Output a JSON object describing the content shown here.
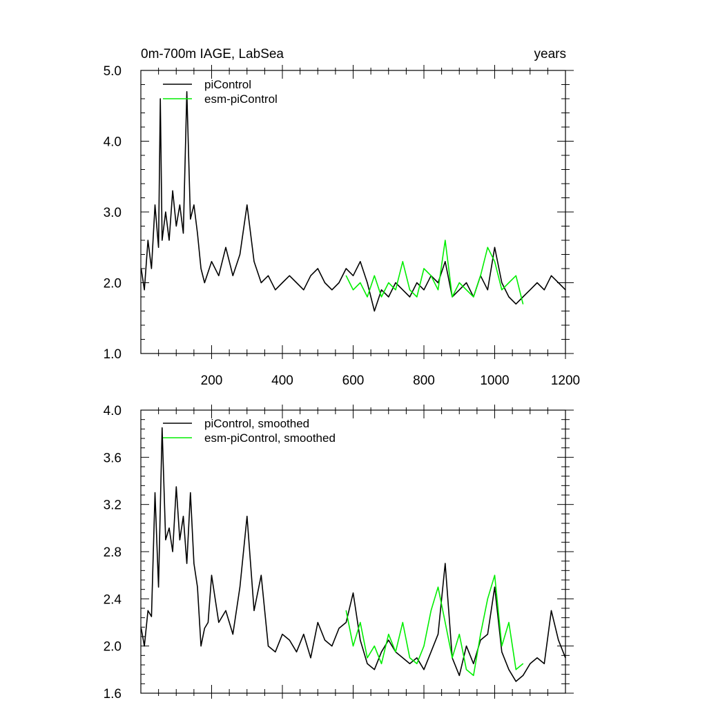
{
  "chart_data": [
    {
      "type": "line",
      "title": "0m-700m IAGE, LabSea",
      "title_right": "years",
      "xlabel": "",
      "ylabel": "",
      "xlim": [
        0,
        1200
      ],
      "ylim": [
        1.0,
        5.0
      ],
      "xticks": [
        200,
        400,
        600,
        800,
        1000,
        1200
      ],
      "yticks": [
        1.0,
        2.0,
        3.0,
        4.0,
        5.0
      ],
      "ytick_labels": [
        "1.0",
        "2.0",
        "3.0",
        "4.0",
        "5.0"
      ],
      "legend_position": "top-left",
      "series": [
        {
          "name": "piControl",
          "color": "#000000",
          "x": [
            1,
            10,
            20,
            30,
            40,
            50,
            55,
            60,
            70,
            80,
            90,
            100,
            110,
            120,
            130,
            140,
            150,
            160,
            170,
            180,
            200,
            220,
            240,
            260,
            280,
            300,
            320,
            340,
            360,
            380,
            400,
            420,
            440,
            460,
            480,
            500,
            520,
            540,
            560,
            580,
            600,
            620,
            640,
            660,
            680,
            700,
            720,
            740,
            760,
            780,
            800,
            820,
            840,
            860,
            880,
            900,
            920,
            940,
            960,
            980,
            1000,
            1020,
            1040,
            1060,
            1080,
            1100,
            1120,
            1140,
            1160,
            1180,
            1200
          ],
          "y": [
            2.2,
            1.9,
            2.6,
            2.2,
            3.1,
            2.5,
            4.6,
            2.6,
            3.0,
            2.6,
            3.3,
            2.8,
            3.1,
            2.7,
            4.7,
            2.9,
            3.1,
            2.7,
            2.2,
            2.0,
            2.3,
            2.1,
            2.5,
            2.1,
            2.4,
            3.1,
            2.3,
            2.0,
            2.1,
            1.9,
            2.0,
            2.1,
            2.0,
            1.9,
            2.1,
            2.2,
            2.0,
            1.9,
            2.0,
            2.2,
            2.1,
            2.3,
            2.0,
            1.6,
            1.9,
            1.8,
            2.0,
            1.9,
            1.8,
            2.0,
            1.9,
            2.1,
            2.0,
            2.3,
            1.8,
            1.9,
            2.0,
            1.8,
            2.1,
            1.9,
            2.5,
            2.0,
            1.8,
            1.7,
            1.8,
            1.9,
            2.0,
            1.9,
            2.1,
            2.0,
            1.9
          ]
        },
        {
          "name": "esm-piControl",
          "color": "#00ee00",
          "x": [
            580,
            600,
            620,
            640,
            660,
            680,
            700,
            720,
            740,
            760,
            780,
            800,
            820,
            840,
            860,
            880,
            900,
            920,
            940,
            960,
            980,
            1000,
            1020,
            1040,
            1060,
            1080
          ],
          "y": [
            2.1,
            1.9,
            2.0,
            1.8,
            2.1,
            1.8,
            2.0,
            1.9,
            2.3,
            1.9,
            1.8,
            2.2,
            2.1,
            1.9,
            2.6,
            1.8,
            2.0,
            1.9,
            1.8,
            2.1,
            2.5,
            2.3,
            1.9,
            2.0,
            2.1,
            1.7
          ]
        }
      ]
    },
    {
      "type": "line",
      "title": "",
      "xlabel": "",
      "ylabel": "",
      "xlim": [
        0,
        1200
      ],
      "ylim": [
        1.6,
        4.0
      ],
      "xticks": [
        200,
        400,
        600,
        800,
        1000,
        1200
      ],
      "yticks": [
        1.6,
        2.0,
        2.4,
        2.8,
        3.2,
        3.6,
        4.0
      ],
      "ytick_labels": [
        "1.6",
        "2.0",
        "2.4",
        "2.8",
        "3.2",
        "3.6",
        "4.0"
      ],
      "legend_position": "top-left",
      "series": [
        {
          "name": "piControl, smoothed",
          "color": "#000000",
          "x": [
            1,
            10,
            20,
            30,
            40,
            50,
            60,
            70,
            80,
            90,
            100,
            110,
            120,
            130,
            140,
            150,
            160,
            170,
            180,
            190,
            200,
            220,
            240,
            260,
            280,
            300,
            320,
            340,
            360,
            380,
            400,
            420,
            440,
            460,
            480,
            500,
            520,
            540,
            560,
            580,
            600,
            620,
            640,
            660,
            680,
            700,
            720,
            740,
            760,
            780,
            800,
            820,
            840,
            860,
            880,
            900,
            920,
            940,
            960,
            980,
            1000,
            1020,
            1040,
            1060,
            1080,
            1100,
            1120,
            1140,
            1160,
            1180,
            1200
          ],
          "y": [
            2.15,
            2.0,
            2.3,
            2.25,
            3.3,
            2.5,
            3.85,
            2.9,
            3.0,
            2.8,
            3.35,
            2.9,
            3.1,
            2.7,
            3.3,
            2.7,
            2.5,
            2.0,
            2.15,
            2.2,
            2.6,
            2.2,
            2.3,
            2.1,
            2.5,
            3.1,
            2.3,
            2.6,
            2.0,
            1.95,
            2.1,
            2.05,
            1.95,
            2.1,
            1.9,
            2.2,
            2.05,
            2.0,
            2.15,
            2.2,
            2.45,
            2.05,
            1.85,
            1.8,
            1.95,
            2.05,
            1.95,
            1.9,
            1.85,
            1.9,
            1.8,
            1.95,
            2.1,
            2.7,
            1.9,
            1.75,
            2.0,
            1.85,
            2.05,
            2.1,
            2.5,
            1.95,
            1.8,
            1.7,
            1.75,
            1.85,
            1.9,
            1.85,
            2.3,
            2.05,
            1.9
          ]
        },
        {
          "name": "esm-piControl, smoothed",
          "color": "#00ee00",
          "x": [
            580,
            600,
            620,
            640,
            660,
            680,
            700,
            720,
            740,
            760,
            780,
            800,
            820,
            840,
            860,
            880,
            900,
            920,
            940,
            960,
            980,
            1000,
            1020,
            1040,
            1060,
            1080
          ],
          "y": [
            2.3,
            2.0,
            2.2,
            1.9,
            2.0,
            1.85,
            2.1,
            1.95,
            2.2,
            1.9,
            1.85,
            2.0,
            2.3,
            2.5,
            2.2,
            1.9,
            2.1,
            1.8,
            1.75,
            2.1,
            2.4,
            2.6,
            2.0,
            2.2,
            1.8,
            1.85
          ]
        }
      ]
    }
  ]
}
